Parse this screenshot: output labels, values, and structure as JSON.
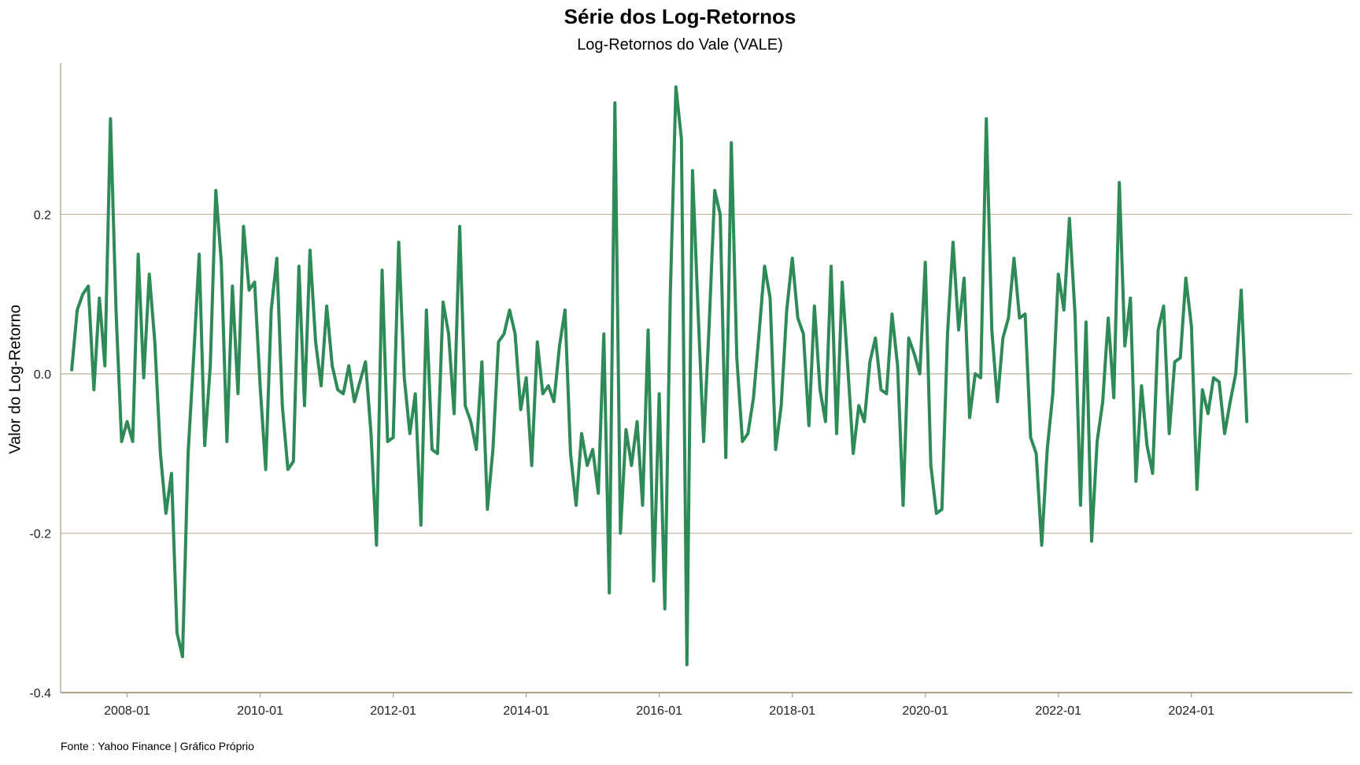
{
  "chart_data": {
    "type": "line",
    "title": "Série dos Log-Retornos",
    "subtitle": "Log-Retornos do Vale (VALE)",
    "xlabel": "",
    "ylabel": "Valor do Log-Retorno",
    "caption": "Fonte : Yahoo Finance | Gráfico Próprio",
    "x_ticks": [
      "2008-01",
      "2010-01",
      "2012-01",
      "2014-01",
      "2016-01",
      "2018-01",
      "2020-01",
      "2022-01",
      "2024-01"
    ],
    "y_ticks": [
      -0.4,
      -0.2,
      0.0,
      0.2
    ],
    "y_tick_labels": [
      "-0.4",
      "-0.2",
      "0.0",
      "0.2"
    ],
    "xlim": [
      "2007-01",
      "2026-06"
    ],
    "ylim": [
      -0.4,
      0.39
    ],
    "grid": "horizontal",
    "line_color": "#2e8b57",
    "grid_color": "#c8b8a8",
    "series": [
      {
        "x_start": "2007-03",
        "frequency": "monthly",
        "values": [
          0.005,
          0.08,
          0.1,
          0.11,
          -0.02,
          0.095,
          0.01,
          0.32,
          0.08,
          -0.085,
          -0.06,
          -0.085,
          0.15,
          -0.005,
          0.125,
          0.04,
          -0.1,
          -0.175,
          -0.125,
          -0.325,
          -0.355,
          -0.1,
          0.02,
          0.15,
          -0.09,
          0.01,
          0.23,
          0.14,
          -0.085,
          0.11,
          -0.025,
          0.185,
          0.105,
          0.115,
          -0.015,
          -0.12,
          0.08,
          0.145,
          -0.04,
          -0.12,
          -0.11,
          0.135,
          -0.04,
          0.155,
          0.04,
          -0.015,
          0.085,
          0.01,
          -0.02,
          -0.025,
          0.01,
          -0.035,
          -0.01,
          0.015,
          -0.075,
          -0.215,
          0.13,
          -0.085,
          -0.08,
          0.165,
          -0.005,
          -0.075,
          -0.025,
          -0.19,
          0.08,
          -0.095,
          -0.1,
          0.09,
          0.05,
          -0.05,
          0.185,
          -0.04,
          -0.06,
          -0.095,
          0.015,
          -0.17,
          -0.095,
          0.04,
          0.05,
          0.08,
          0.05,
          -0.045,
          -0.005,
          -0.115,
          0.04,
          -0.025,
          -0.015,
          -0.035,
          0.035,
          0.08,
          -0.1,
          -0.165,
          -0.075,
          -0.115,
          -0.095,
          -0.15,
          0.05,
          -0.275,
          0.34,
          -0.2,
          -0.07,
          -0.115,
          -0.06,
          -0.165,
          0.055,
          -0.26,
          -0.025,
          -0.295,
          0.1,
          0.36,
          0.295,
          -0.365,
          0.255,
          0.08,
          -0.085,
          0.06,
          0.23,
          0.2,
          -0.105,
          0.29,
          0.02,
          -0.085,
          -0.075,
          -0.03,
          0.05,
          0.135,
          0.095,
          -0.095,
          -0.04,
          0.08,
          0.145,
          0.07,
          0.05,
          -0.065,
          0.085,
          -0.02,
          -0.06,
          0.135,
          -0.075,
          0.115,
          0.01,
          -0.1,
          -0.04,
          -0.06,
          0.015,
          0.045,
          -0.02,
          -0.025,
          0.075,
          0.01,
          -0.165,
          0.045,
          0.025,
          0.0,
          0.14,
          -0.115,
          -0.175,
          -0.17,
          0.05,
          0.165,
          0.055,
          0.12,
          -0.055,
          0.0,
          -0.005,
          0.32,
          0.055,
          -0.035,
          0.045,
          0.07,
          0.145,
          0.07,
          0.075,
          -0.08,
          -0.1,
          -0.215,
          -0.095,
          -0.025,
          0.125,
          0.08,
          0.195,
          0.075,
          -0.165,
          0.065,
          -0.21,
          -0.085,
          -0.035,
          0.07,
          -0.03,
          0.24,
          0.035,
          0.095,
          -0.135,
          -0.015,
          -0.09,
          -0.125,
          0.055,
          0.085,
          -0.075,
          0.015,
          0.02,
          0.12,
          0.06,
          -0.145,
          -0.02,
          -0.05,
          -0.005,
          -0.01,
          -0.075,
          -0.035,
          0.0,
          0.105,
          -0.06
        ]
      }
    ]
  }
}
